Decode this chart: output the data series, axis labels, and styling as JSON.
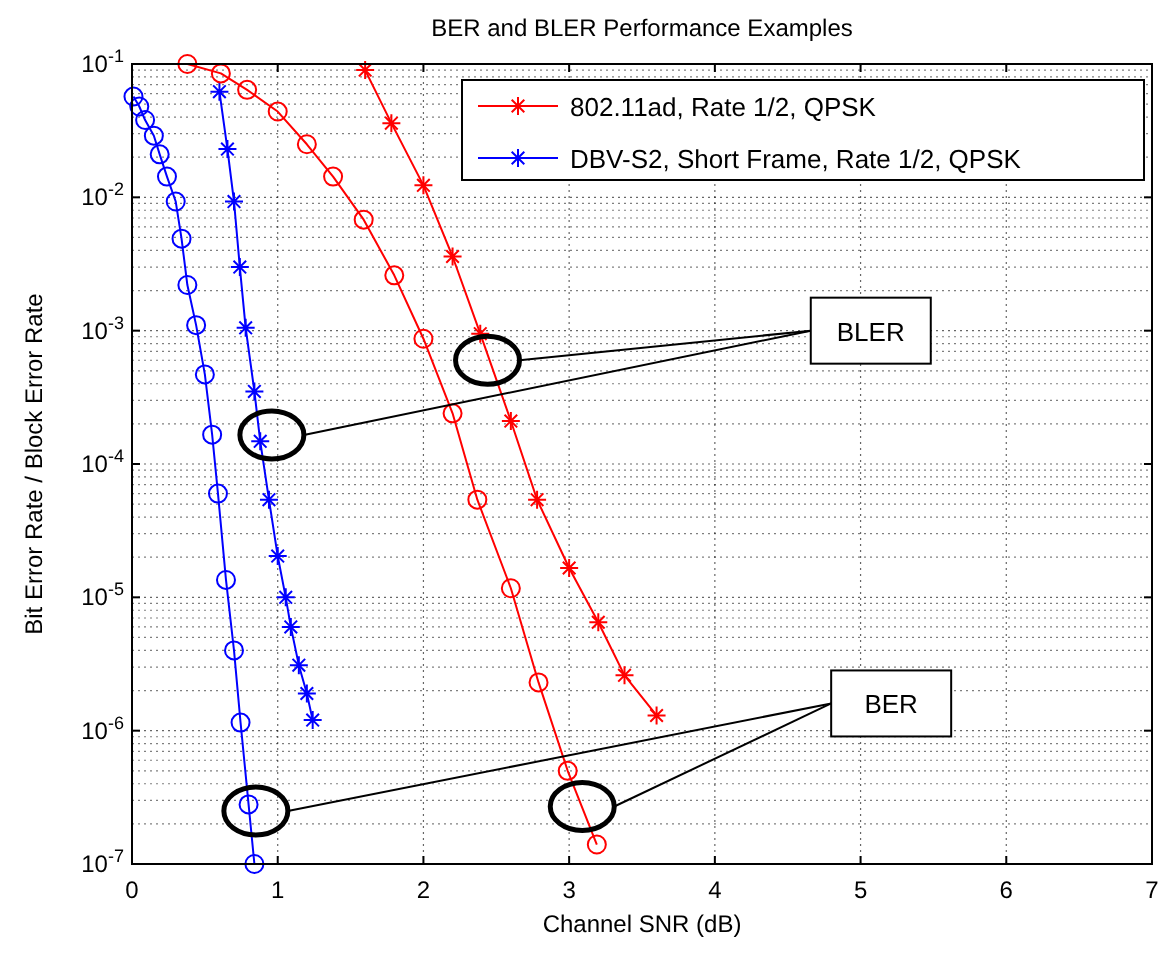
{
  "chart_data": {
    "type": "line",
    "title": "BER and BLER Performance Examples",
    "xlabel": "Channel SNR (dB)",
    "ylabel": "Bit Error Rate / Block Error Rate",
    "log": "y",
    "grid": true,
    "legend": "top right",
    "xlim": [
      0,
      7
    ],
    "xticks": [
      0,
      1,
      2,
      3,
      4,
      5,
      6,
      7
    ],
    "ylim": [
      1e-07,
      0.1
    ],
    "yticks": [
      {
        "value": 1e-07,
        "label": "10$^{-7}$"
      },
      {
        "value": 1e-06,
        "label": "10$^{-6}$"
      },
      {
        "value": 1e-05,
        "label": "10$^{-5}$"
      },
      {
        "value": 0.0001,
        "label": "10$^{-4}$"
      },
      {
        "value": 0.001,
        "label": "10$^{-3}$"
      },
      {
        "value": 0.01,
        "label": "10$^{-2}$"
      },
      {
        "value": 0.1,
        "label": "10$^{-1}$"
      }
    ],
    "annotations": [
      "BLER",
      "BER"
    ],
    "series": [
      {
        "name": "802.11ad, Rate 1/2, QPSK",
        "color": "#ff0000",
        "marker": "cross",
        "x": [
          1.6,
          1.78,
          2.0,
          2.2,
          2.39,
          2.6,
          2.78,
          3.0,
          3.2,
          3.38,
          3.6
        ],
        "values": [
          0.09,
          0.036,
          0.0123,
          0.0036,
          0.00095,
          0.00021,
          5.4e-05,
          1.66e-05,
          6.5e-06,
          2.6e-06,
          1.3e-06
        ]
      },
      {
        "name": "DBV-S2, Short Frame, Rate 1/2, QPSK",
        "color": "#0000ff",
        "marker": "cross",
        "x": [
          0.6,
          0.655,
          0.7,
          0.74,
          0.78,
          0.84,
          0.88,
          0.94,
          1.0,
          1.055,
          1.09,
          1.145,
          1.2,
          1.24
        ],
        "values": [
          0.062,
          0.023,
          0.0093,
          0.003,
          0.00105,
          0.00035,
          0.000148,
          5.4e-05,
          2.04e-05,
          1e-05,
          6e-06,
          3.1e-06,
          1.9e-06,
          1.2e-06
        ]
      },
      {
        "color": "#ff0000",
        "marker": "circle",
        "x": [
          0.38,
          0.61,
          0.79,
          1.0,
          1.2,
          1.38,
          1.59,
          1.8,
          2.0,
          2.2,
          2.37,
          2.6,
          2.79,
          2.99,
          3.19
        ],
        "values": [
          0.1,
          0.085,
          0.064,
          0.044,
          0.025,
          0.0143,
          0.0068,
          0.0026,
          0.00087,
          0.00024,
          5.4e-05,
          1.17e-05,
          2.3e-06,
          5e-07,
          1.4e-07
        ]
      },
      {
        "color": "#0000ff",
        "marker": "circle",
        "x": [
          0.01,
          0.05,
          0.09,
          0.15,
          0.19,
          0.24,
          0.3,
          0.34,
          0.38,
          0.44,
          0.5,
          0.55,
          0.59,
          0.645,
          0.7,
          0.745,
          0.8,
          0.84
        ],
        "values": [
          0.057,
          0.048,
          0.038,
          0.029,
          0.021,
          0.0143,
          0.0093,
          0.0049,
          0.0022,
          0.0011,
          0.00047,
          0.000166,
          6e-05,
          1.35e-05,
          4e-06,
          1.15e-06,
          2.8e-07,
          1e-07
        ]
      }
    ]
  }
}
